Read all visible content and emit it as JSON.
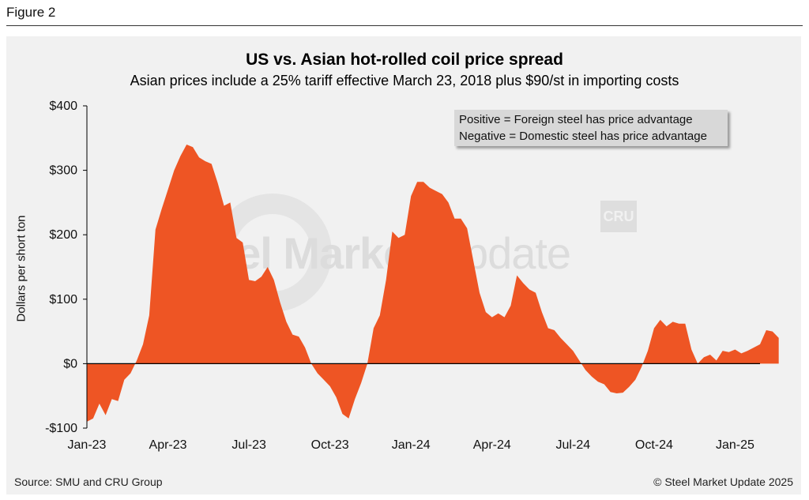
{
  "figure_label": "Figure 2",
  "source": "Source: SMU and CRU Group",
  "copyright": "© Steel Market Update 2025",
  "watermark": {
    "brand_bold": "Steel Market",
    "brand_light": "Update",
    "logo_text": "CRU"
  },
  "legend": {
    "line1": "Positive = Foreign steel has price advantage",
    "line2": "Negative = Domestic steel has price advantage"
  },
  "colors": {
    "fill": "#ee5524",
    "zero_line": "#000000",
    "axis": "#000000"
  },
  "chart_data": {
    "type": "area",
    "title": "US vs. Asian hot-rolled coil price spread",
    "subtitle": "Asian prices include a 25% tariff effective March 23, 2018 plus $90/st in importing costs",
    "xlabel": "",
    "ylabel": "Dollars per short ton",
    "ylim": [
      -100,
      400
    ],
    "yticks": [
      400,
      300,
      200,
      100,
      0,
      -100
    ],
    "ytick_labels": [
      "$400",
      "$300",
      "$200",
      "$100",
      "$0",
      "-$100"
    ],
    "xlim": [
      0,
      108
    ],
    "xticks": [
      0,
      13,
      26,
      39,
      52,
      65,
      78,
      91,
      104
    ],
    "xtick_labels": [
      "Jan-23",
      "Apr-23",
      "Jul-23",
      "Oct-23",
      "Jan-24",
      "Apr-24",
      "Jul-24",
      "Oct-24",
      "Jan-25"
    ],
    "x_unit": "weeks since Jan-23 (weekly)",
    "series": [
      {
        "name": "US vs. Asian HRC price spread ($/st)",
        "values": [
          -90,
          -85,
          -62,
          -80,
          -55,
          -58,
          -25,
          -15,
          5,
          30,
          75,
          208,
          240,
          270,
          300,
          322,
          340,
          336,
          320,
          314,
          310,
          280,
          245,
          250,
          195,
          188,
          130,
          128,
          135,
          150,
          130,
          95,
          65,
          45,
          42,
          25,
          0,
          -15,
          -25,
          -35,
          -52,
          -78,
          -85,
          -55,
          -30,
          0,
          55,
          75,
          130,
          205,
          195,
          200,
          260,
          282,
          282,
          273,
          268,
          263,
          250,
          225,
          225,
          210,
          160,
          110,
          80,
          72,
          78,
          72,
          90,
          137,
          125,
          115,
          110,
          80,
          55,
          52,
          40,
          30,
          20,
          5,
          -10,
          -20,
          -28,
          -32,
          -44,
          -46,
          -45,
          -36,
          -25,
          -5,
          20,
          55,
          68,
          58,
          65,
          62,
          62,
          22,
          0,
          10,
          14,
          5,
          20,
          18,
          22,
          16,
          20,
          25,
          30,
          52,
          50,
          40
        ]
      }
    ]
  }
}
